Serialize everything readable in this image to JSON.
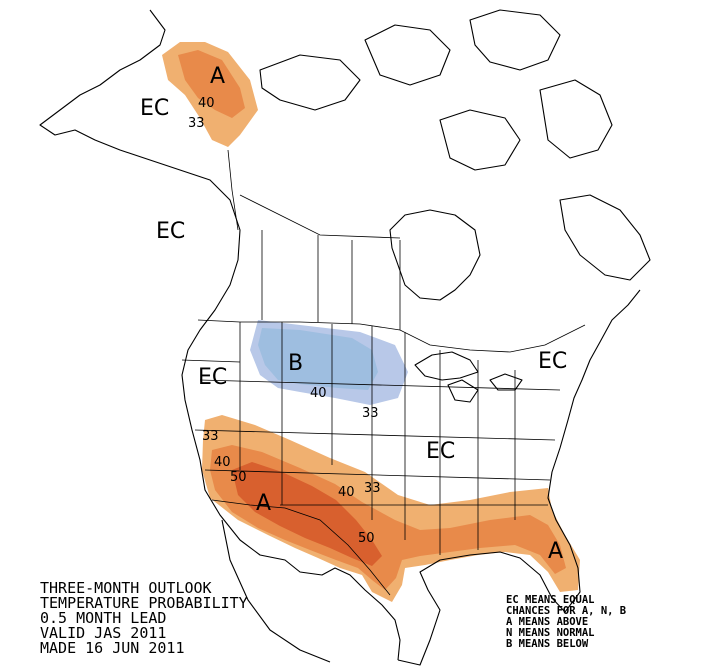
{
  "map": {
    "labels": {
      "ec_alaska": "EC",
      "ec_canada": "EC",
      "ec_west": "EC",
      "ec_central": "EC",
      "ec_east": "EC",
      "a_alaska": "A",
      "b_north": "B",
      "a_southwest": "A",
      "a_florida": "A"
    },
    "contours": {
      "ak_40": "40",
      "ak_33": "33",
      "b_40": "40",
      "b_33": "33",
      "sw_33": "33",
      "sw_40": "40",
      "sw_50a": "50",
      "tx_40": "40",
      "tx_33": "33",
      "tx_50": "50"
    },
    "title_lines": [
      "THREE-MONTH OUTLOOK",
      "TEMPERATURE PROBABILITY",
      "0.5 MONTH LEAD",
      "VALID JAS 2011",
      "MADE 16 JUN 2011"
    ],
    "legend_lines": [
      "EC MEANS EQUAL",
      "CHANCES FOR A, N, B",
      "A MEANS ABOVE",
      "N MEANS NORMAL",
      "B MEANS BELOW"
    ],
    "colors": {
      "above_33": "#f0b070",
      "above_40": "#e88a4a",
      "above_50": "#d8602e",
      "below_33": "#b8c8e8",
      "below_40": "#9ebee0"
    }
  }
}
